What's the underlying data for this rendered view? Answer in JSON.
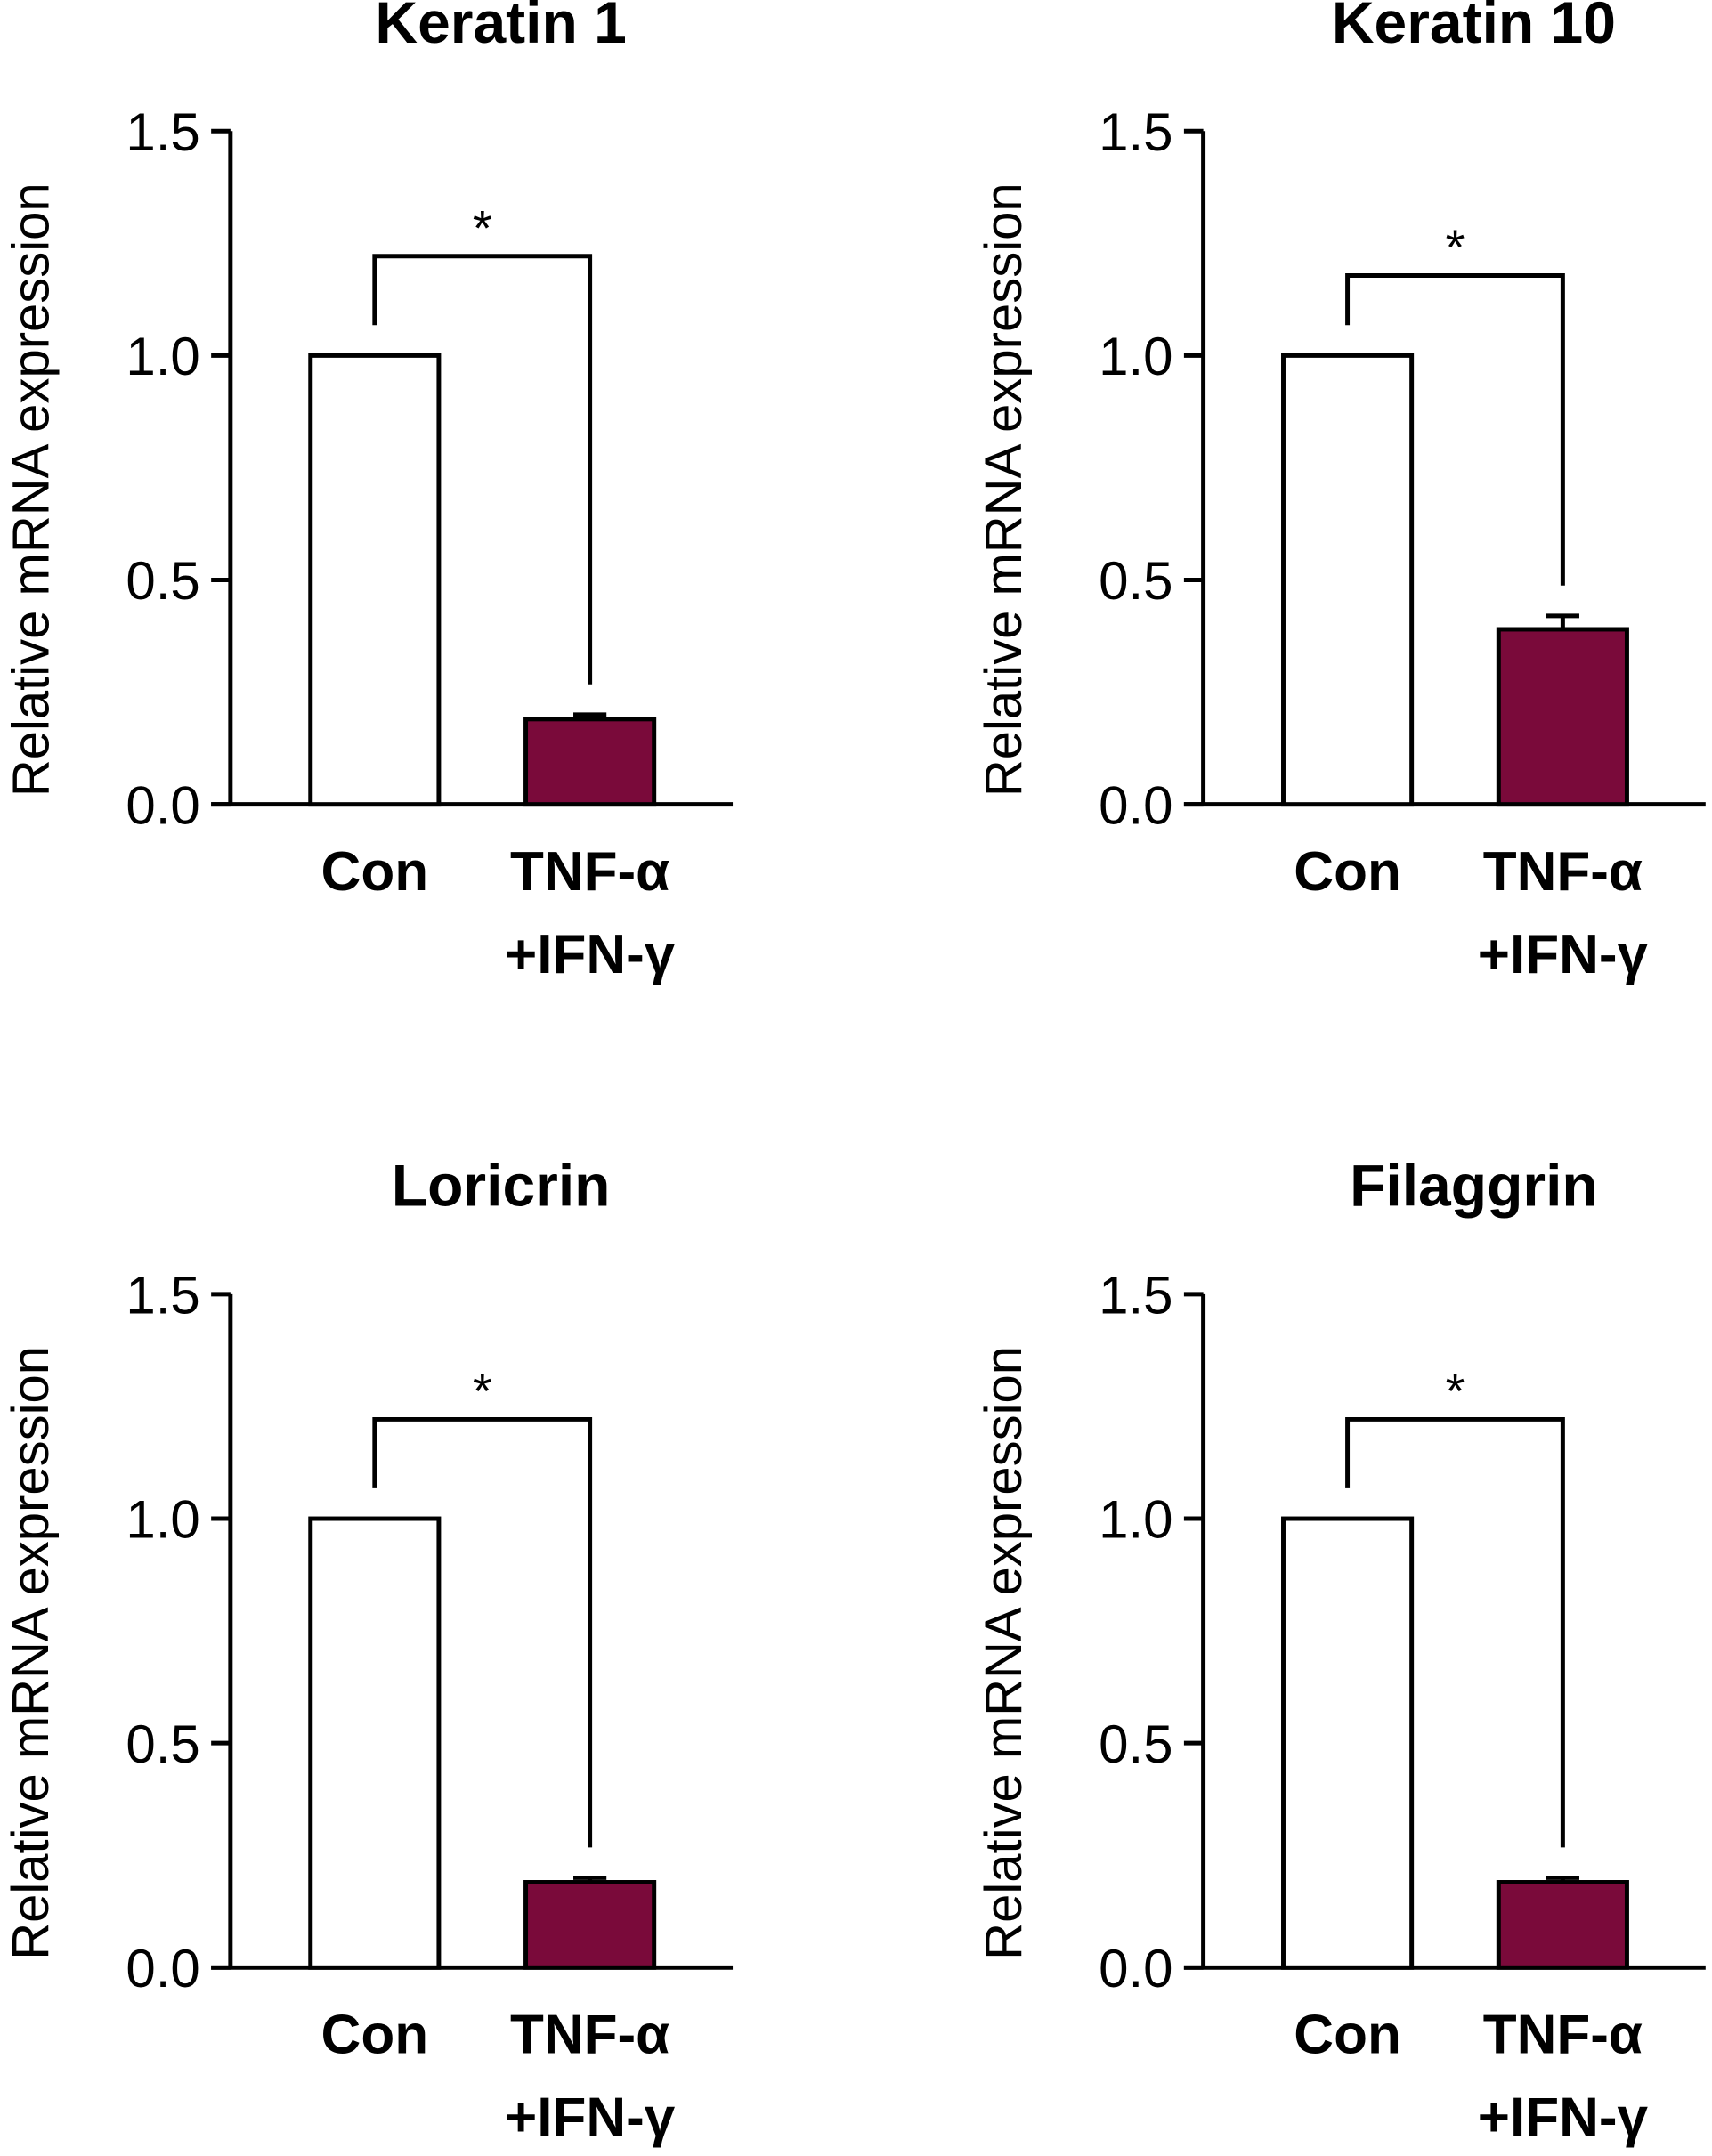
{
  "chart_data": [
    {
      "type": "bar",
      "title": "Keratin 1",
      "ylabel": "Relative mRNA expression",
      "xlabel": "",
      "ylim": [
        0,
        1.5
      ],
      "yticks": [
        "0.0",
        "0.5",
        "1.0",
        "1.5"
      ],
      "categories": [
        {
          "line1": "Con",
          "line2": ""
        },
        {
          "line1": "TNF-α",
          "line2": "+IFN-γ"
        }
      ],
      "values": [
        1.0,
        0.19
      ],
      "errors": [
        0,
        0.01
      ],
      "colors": [
        "#ffffff",
        "#7a0a3a"
      ],
      "significance": "*"
    },
    {
      "type": "bar",
      "title": "Keratin 10",
      "ylabel": "Relative mRNA expression",
      "xlabel": "",
      "ylim": [
        0,
        1.5
      ],
      "yticks": [
        "0.0",
        "0.5",
        "1.0",
        "1.5"
      ],
      "categories": [
        {
          "line1": "Con",
          "line2": ""
        },
        {
          "line1": "TNF-α",
          "line2": "+IFN-γ"
        }
      ],
      "values": [
        1.0,
        0.39
      ],
      "errors": [
        0,
        0.03
      ],
      "colors": [
        "#ffffff",
        "#7a0a3a"
      ],
      "significance": "*"
    },
    {
      "type": "bar",
      "title": "Loricrin",
      "ylabel": "Relative mRNA expression",
      "xlabel": "",
      "ylim": [
        0,
        1.5
      ],
      "yticks": [
        "0.0",
        "0.5",
        "1.0",
        "1.5"
      ],
      "categories": [
        {
          "line1": "Con",
          "line2": ""
        },
        {
          "line1": "TNF-α",
          "line2": "+IFN-γ"
        }
      ],
      "values": [
        1.0,
        0.19
      ],
      "errors": [
        0,
        0.01
      ],
      "colors": [
        "#ffffff",
        "#7a0a3a"
      ],
      "significance": "*"
    },
    {
      "type": "bar",
      "title": "Filaggrin",
      "ylabel": "Relative mRNA expression",
      "xlabel": "",
      "ylim": [
        0,
        1.5
      ],
      "yticks": [
        "0.0",
        "0.5",
        "1.0",
        "1.5"
      ],
      "categories": [
        {
          "line1": "Con",
          "line2": ""
        },
        {
          "line1": "TNF-α",
          "line2": "+IFN-γ"
        }
      ],
      "values": [
        1.0,
        0.19
      ],
      "errors": [
        0,
        0.01
      ],
      "colors": [
        "#ffffff",
        "#7a0a3a"
      ],
      "significance": "*"
    }
  ]
}
